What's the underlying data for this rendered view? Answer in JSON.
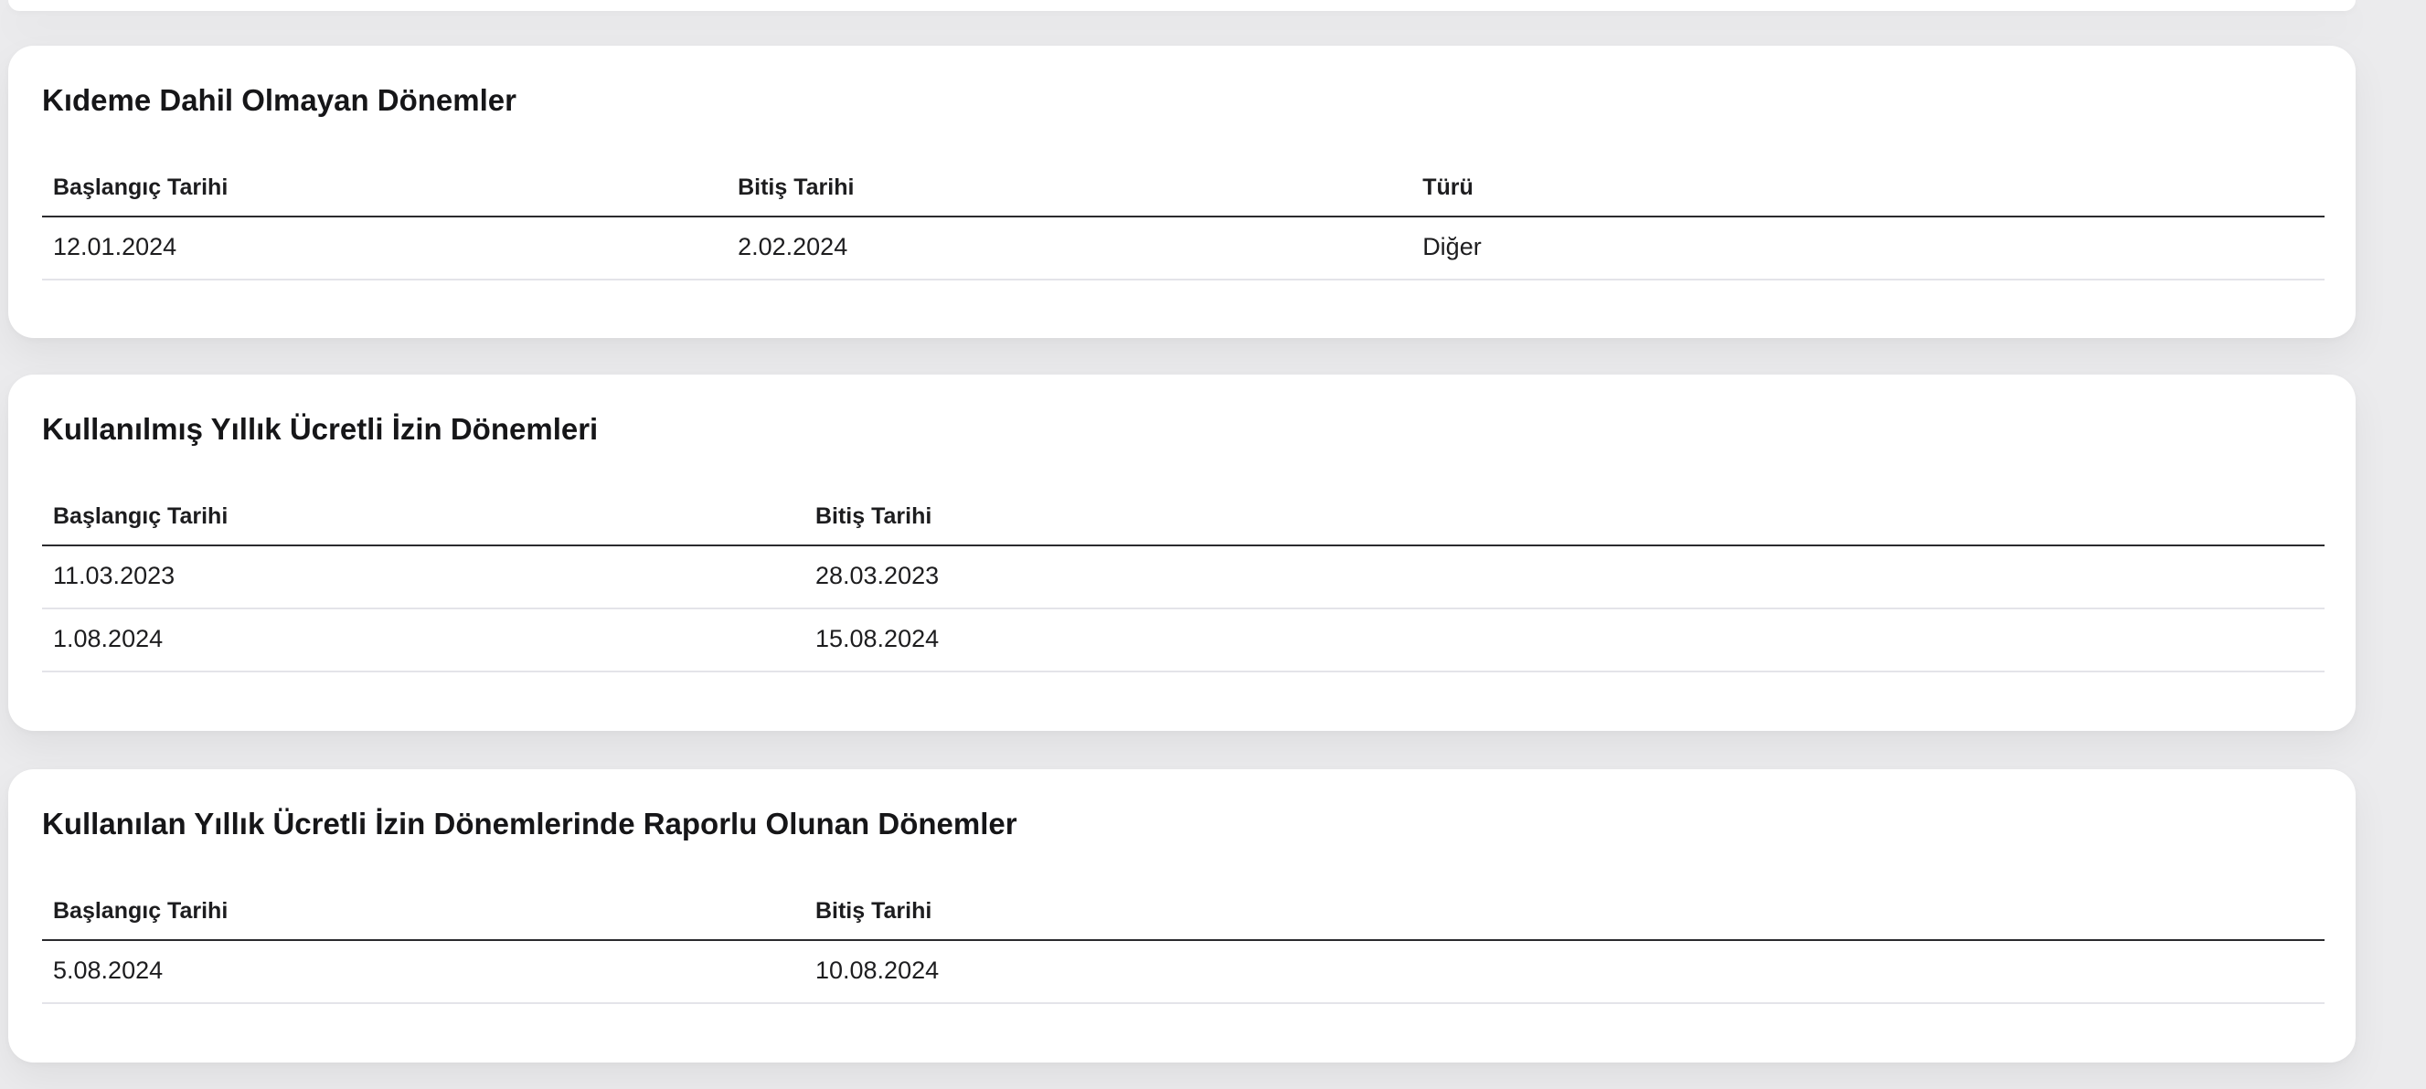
{
  "page": {
    "colors": {
      "background": "#ebebed",
      "card_background": "#ffffff",
      "text": "#1d1d1f",
      "header_rule": "#2b2b2e",
      "row_divider": "#e4e4e9"
    }
  },
  "cards": [
    {
      "title": "Kıdeme Dahil Olmayan Dönemler",
      "columns": [
        "Başlangıç Tarihi",
        "Bitiş Tarihi",
        "Türü"
      ],
      "rows": [
        [
          "12.01.2024",
          "2.02.2024",
          "Diğer"
        ]
      ]
    },
    {
      "title": "Kullanılmış Yıllık Ücretli İzin Dönemleri",
      "columns": [
        "Başlangıç Tarihi",
        "Bitiş Tarihi"
      ],
      "rows": [
        [
          "11.03.2023",
          "28.03.2023"
        ],
        [
          "1.08.2024",
          "15.08.2024"
        ]
      ]
    },
    {
      "title": "Kullanılan Yıllık Ücretli İzin Dönemlerinde Raporlu Olunan Dönemler",
      "columns": [
        "Başlangıç Tarihi",
        "Bitiş Tarihi"
      ],
      "rows": [
        [
          "5.08.2024",
          "10.08.2024"
        ]
      ]
    }
  ]
}
